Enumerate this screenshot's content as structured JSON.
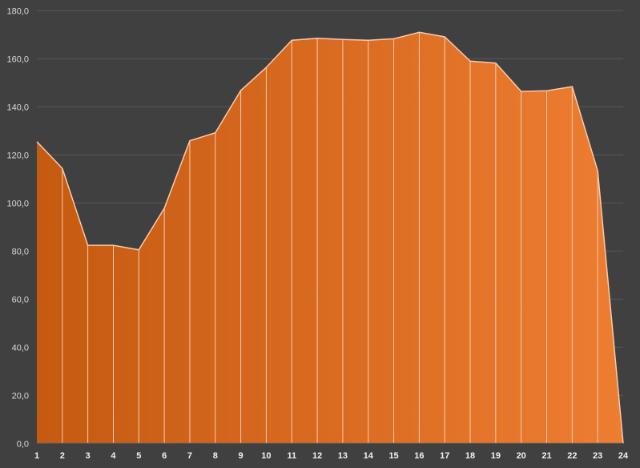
{
  "chart_data": {
    "type": "area",
    "title": "",
    "xlabel": "",
    "ylabel": "",
    "categories": [
      "1",
      "2",
      "3",
      "4",
      "5",
      "6",
      "7",
      "8",
      "9",
      "10",
      "11",
      "12",
      "13",
      "14",
      "15",
      "16",
      "17",
      "18",
      "19",
      "20",
      "21",
      "22",
      "23",
      "24"
    ],
    "values": [
      125.5,
      114.4,
      82.4,
      82.4,
      80.5,
      97.8,
      125.9,
      129.2,
      146.8,
      156.4,
      167.7,
      168.5,
      168.0,
      167.7,
      168.3,
      171.0,
      169.1,
      159.0,
      158.2,
      146.4,
      146.7,
      148.4,
      113.4,
      0.0
    ],
    "ylim": [
      0,
      180
    ],
    "yticks": [
      "0,0",
      "20,0",
      "40,0",
      "60,0",
      "80,0",
      "100,0",
      "120,0",
      "140,0",
      "160,0",
      "180,0"
    ],
    "grid": true,
    "legend": "none",
    "colors": {
      "fill_start": "#c55a11",
      "fill_end": "#ed7d31",
      "line": "#f8cbad",
      "grid": "#595959",
      "background": "#404040"
    }
  }
}
